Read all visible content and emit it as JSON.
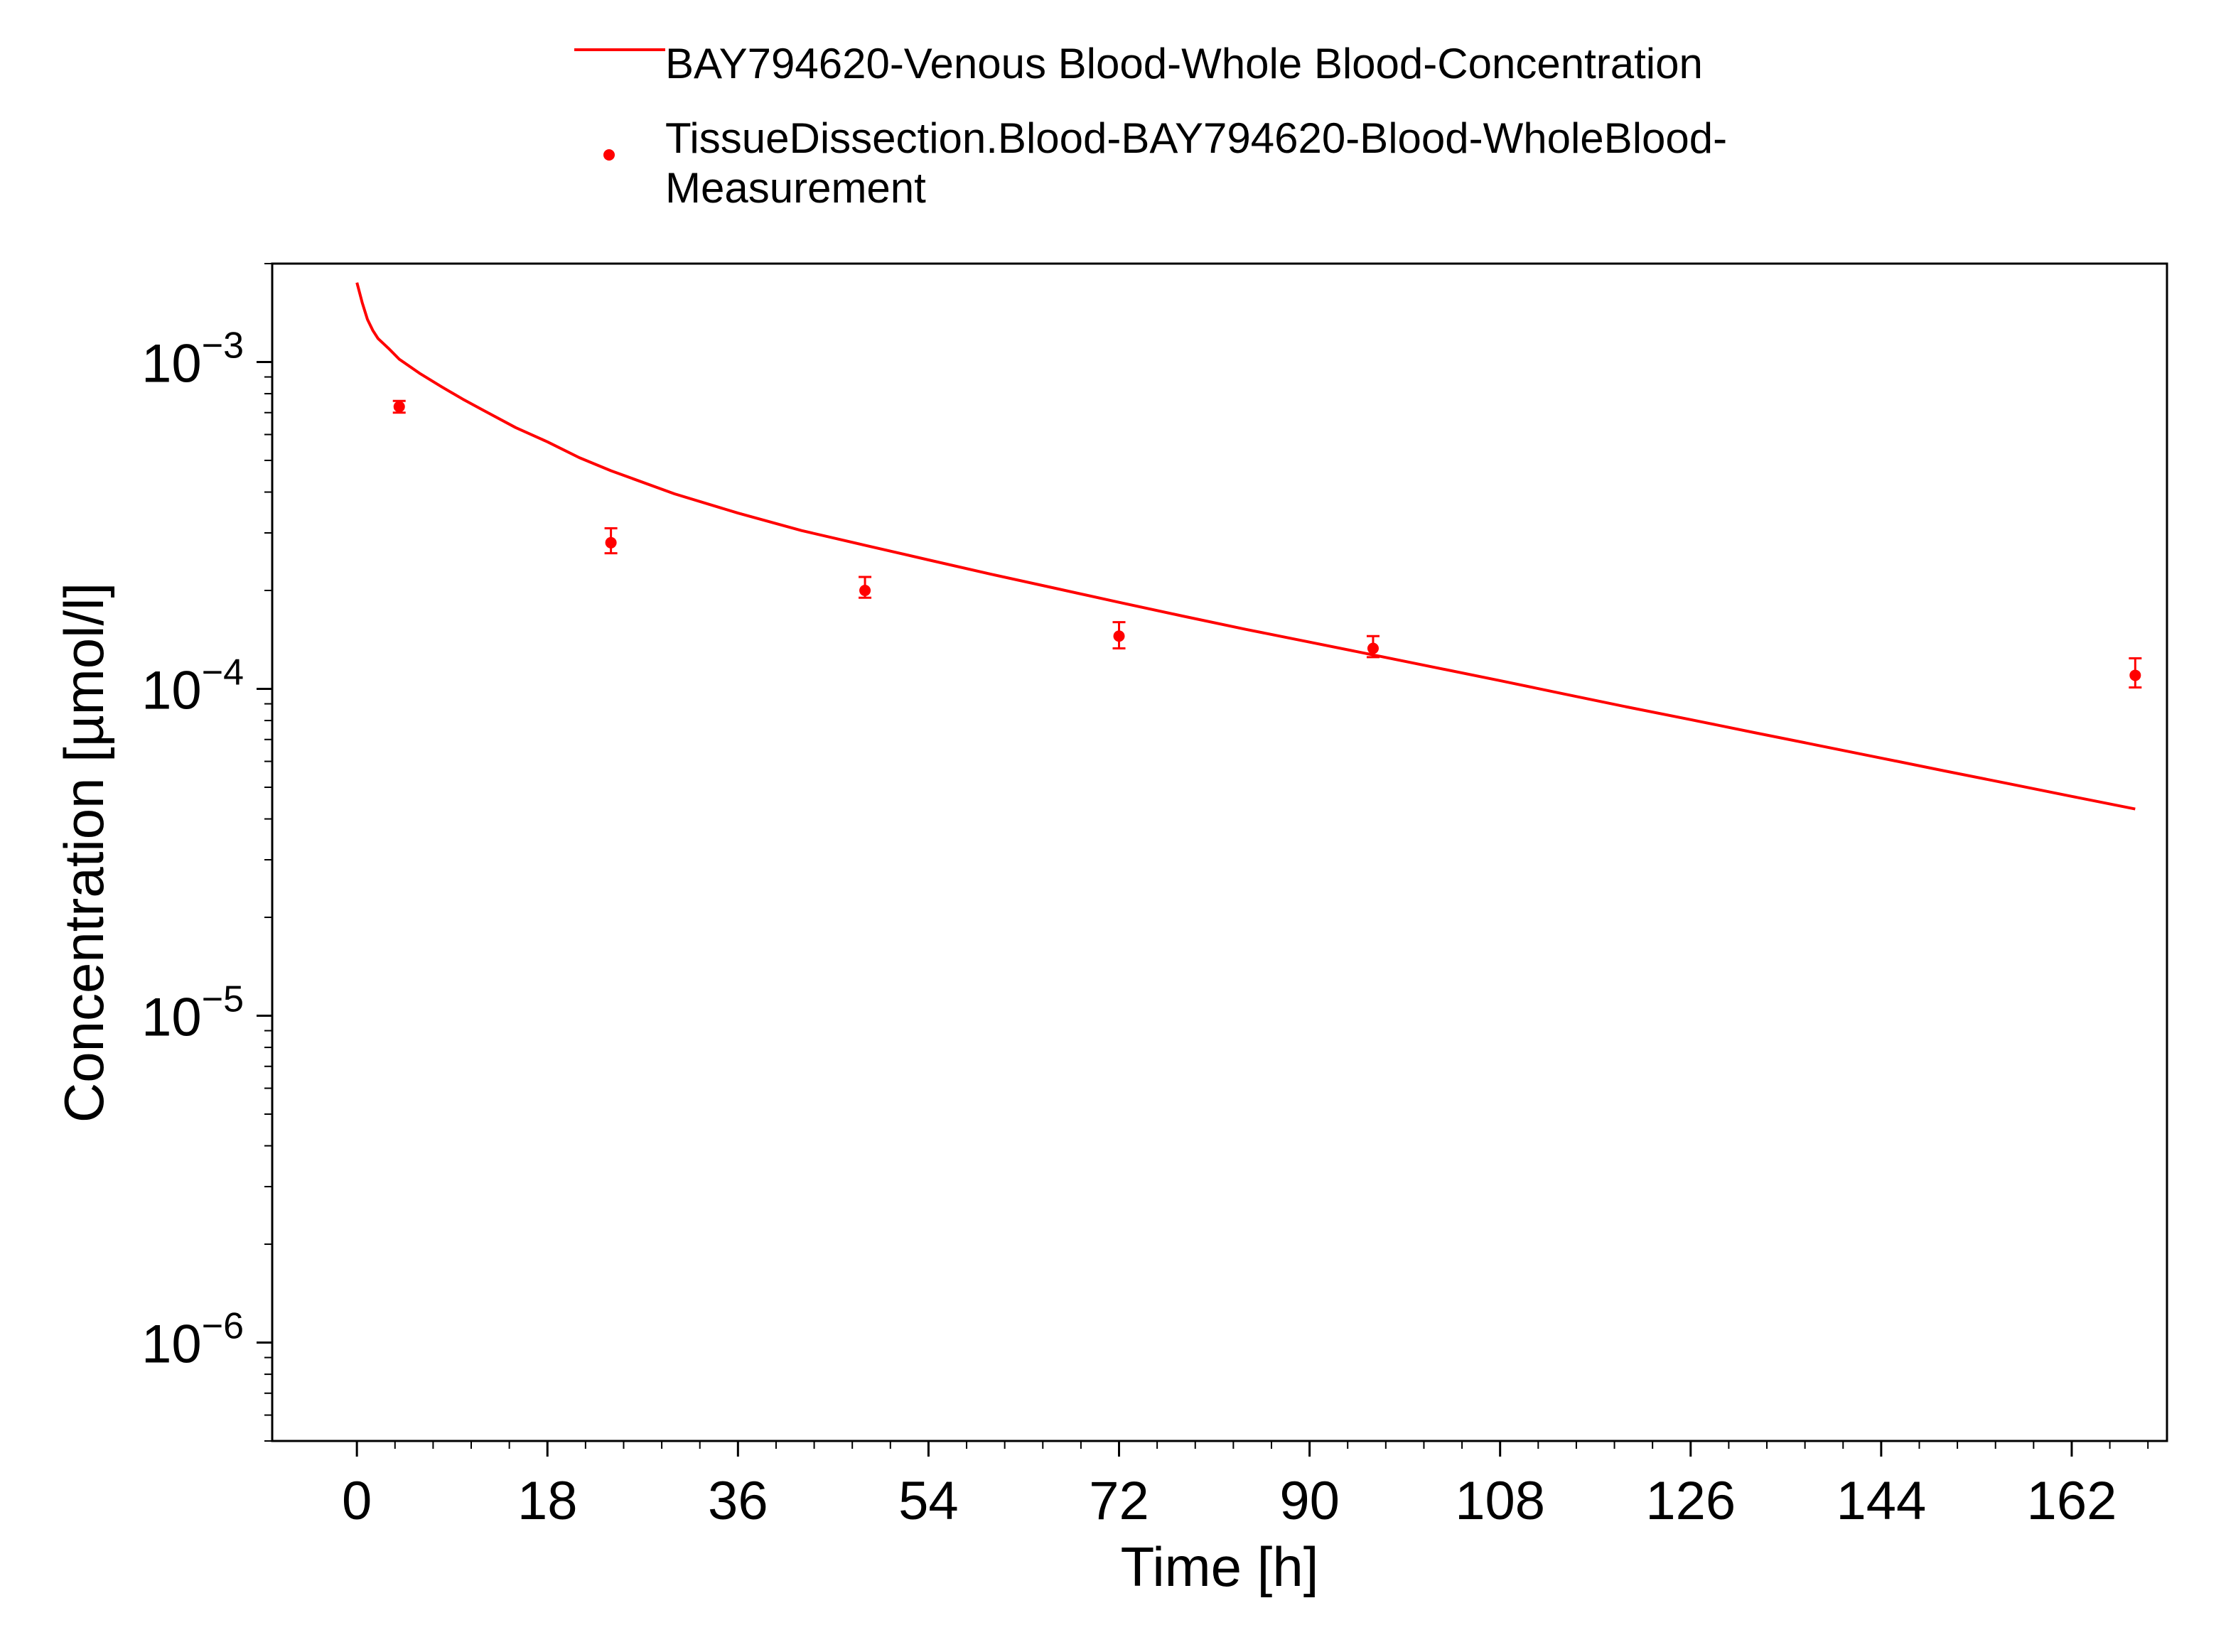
{
  "chart_data": {
    "type": "line",
    "xlabel": "Time [h]",
    "ylabel": "Concentration [µmol/l]",
    "xlim": [
      -8,
      171
    ],
    "ylim": [
      5e-07,
      0.002
    ],
    "yscale": "log",
    "xticks": [
      "0",
      "18",
      "36",
      "54",
      "72",
      "90",
      "108",
      "126",
      "144",
      "162"
    ],
    "yticks": [
      {
        "base": "10",
        "exp": "−3",
        "value": 0.001
      },
      {
        "base": "10",
        "exp": "−4",
        "value": 0.0001
      },
      {
        "base": "10",
        "exp": "−5",
        "value": 1e-05
      },
      {
        "base": "10",
        "exp": "−6",
        "value": 1e-06
      }
    ],
    "grid": false,
    "legend_position": "top",
    "color": "#ff0000",
    "series": [
      {
        "name": "BAY794620-Venous Blood-Whole Blood-Concentration",
        "type": "line",
        "x": [
          0,
          0.5,
          1,
          1.5,
          2,
          3,
          4,
          6,
          8,
          10,
          12,
          15,
          18,
          21,
          24,
          30,
          36,
          42,
          48,
          54,
          60,
          66,
          72,
          78,
          84,
          90,
          96,
          102,
          108,
          114,
          120,
          126,
          132,
          138,
          144,
          150,
          156,
          162,
          168
        ],
        "y": [
          0.00175,
          0.00152,
          0.00135,
          0.00125,
          0.00118,
          0.0011,
          0.00102,
          0.00092,
          0.00084,
          0.00077,
          0.00071,
          0.00063,
          0.00057,
          0.00051,
          0.000465,
          0.000395,
          0.000345,
          0.000305,
          0.000275,
          0.000248,
          0.000224,
          0.000203,
          0.000184,
          0.000167,
          0.000152,
          0.000139,
          0.000127,
          0.000116,
          0.000106,
          9.65e-05,
          8.8e-05,
          8.05e-05,
          7.35e-05,
          6.72e-05,
          6.14e-05,
          5.61e-05,
          5.13e-05,
          4.69e-05,
          4.29e-05
        ]
      },
      {
        "name": "TissueDissection.Blood-BAY794620-Blood-WholeBlood-Measurement",
        "name_lines": [
          "TissueDissection.Blood-BAY794620-Blood-WholeBlood-",
          "Measurement"
        ],
        "type": "scatter",
        "x": [
          4,
          24,
          48,
          72,
          96,
          168
        ],
        "y": [
          0.00073,
          0.00028,
          0.0002,
          0.000145,
          0.000133,
          0.00011
        ],
        "y_low": [
          0.0007,
          0.00026,
          0.00019,
          0.000133,
          0.000125,
          0.000101
        ],
        "y_high": [
          0.00076,
          0.00031,
          0.00022,
          0.00016,
          0.000145,
          0.000124
        ]
      }
    ]
  }
}
